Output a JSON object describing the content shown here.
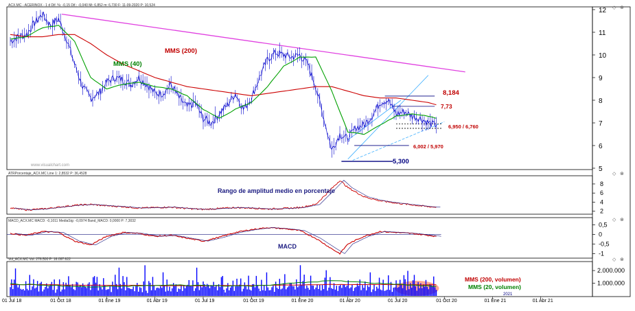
{
  "header": {
    "price_info": "ACX.MC - ACERINOX - 1 d  Dif. %: -0,15  Dif.: -0,040  Mi: 6,852  m: 6,730  F: 11-09-2020  P: 10,524",
    "watermark": "www.visualchart.com"
  },
  "panels": {
    "atr_header": "ATRPorcentaje_ACX.MC Line 1: 2,8532  P: 36,4528",
    "macd_header": "MACD_ACX.MC  MACD: -0,1011  MediaSig: -0,0974  Band_MACD: 0,0000  P: 7,3032",
    "vol_header": "Vol_ACX.MC  Vol: 276.500  P: 16.097.622"
  },
  "annotations": {
    "mms200": "MMS (200)",
    "mms40": "MMS (40)",
    "level_8184": "8,184",
    "level_773": "7,73",
    "level_6950": "6,950 / 6,760",
    "level_6002": "6,002 / 5,970",
    "level_5300": "5,300",
    "atr_title": "Rango de amplitud medio en porcentaje",
    "macd_title": "MACD",
    "vol_mms200": "MMS (200, volumen)",
    "vol_mms20": "MMS (20, volumen)",
    "year_2021": "2021"
  },
  "colors": {
    "price": "#0000cc",
    "mms200": "#cc0000",
    "mms40": "#00a000",
    "trendline": "#e040e0",
    "channel": "#40b0ff",
    "volume": "#0000ff",
    "volume_highlight": "#ff6040",
    "grid": "#000000"
  },
  "chart_data": [
    {
      "type": "line",
      "title": "",
      "x_ticks": [
        "01 Jul 18",
        "01 Oct 18",
        "01 Ene 19",
        "01 Abr 19",
        "01 Jul 19",
        "01 Oct 19",
        "01 Ene 20",
        "01 Abr 20",
        "01 Jul 20",
        "01 Oct 20",
        "01 Ene 21",
        "01 Abr 21"
      ],
      "y_ticks": [
        5,
        6,
        7,
        8,
        9,
        10,
        11,
        12
      ],
      "ylim": [
        5,
        12
      ],
      "x_months": [
        0,
        3,
        6,
        9,
        12,
        15,
        18,
        21,
        24,
        27,
        30,
        33
      ],
      "series": [
        {
          "name": "ACX.MC",
          "x": [
            0,
            0.5,
            1,
            1.5,
            2,
            2.5,
            3,
            3.5,
            4,
            4.5,
            5,
            5.5,
            6,
            6.5,
            7,
            7.5,
            8,
            8.5,
            9,
            9.5,
            10,
            10.5,
            11,
            11.5,
            12,
            12.5,
            13,
            13.5,
            14,
            14.5,
            15,
            15.5,
            16,
            16.5,
            17,
            17.5,
            18,
            18.5,
            19,
            19.5,
            20,
            20.5,
            21,
            21.5,
            22,
            22.5,
            23,
            23.5,
            24,
            24.5,
            25,
            25.5,
            26,
            26.5
          ],
          "values": [
            10.6,
            10.8,
            10.9,
            11.4,
            11.8,
            11.3,
            11.6,
            10.7,
            9.6,
            8.6,
            8.1,
            8.3,
            8.8,
            9.0,
            8.9,
            8.7,
            9.0,
            8.7,
            8.3,
            8.3,
            8.7,
            8.1,
            7.7,
            7.9,
            7.2,
            7.0,
            7.4,
            7.8,
            8.3,
            7.6,
            8.1,
            9.0,
            9.8,
            10.1,
            10.0,
            9.9,
            10.0,
            9.6,
            8.6,
            7.2,
            5.8,
            6.5,
            6.3,
            6.8,
            6.9,
            7.3,
            7.9,
            8.0,
            7.4,
            7.5,
            7.3,
            7.2,
            7.0,
            6.9
          ]
        },
        {
          "name": "MMS (40)",
          "x": [
            0,
            1,
            2,
            3,
            4,
            5,
            6,
            7,
            8,
            9,
            10,
            11,
            12,
            13,
            14,
            15,
            16,
            17,
            18,
            19,
            20,
            21,
            22,
            23,
            24,
            25,
            26,
            26.5
          ],
          "values": [
            10.7,
            10.8,
            11.2,
            11.3,
            10.6,
            9.0,
            8.5,
            8.7,
            8.8,
            8.6,
            8.5,
            8.2,
            7.6,
            7.2,
            7.6,
            7.9,
            8.6,
            9.5,
            9.9,
            9.9,
            8.4,
            6.6,
            6.5,
            6.9,
            7.3,
            7.4,
            7.3,
            7.2
          ]
        },
        {
          "name": "MMS (200)",
          "x": [
            0,
            1,
            2,
            3,
            4,
            5,
            6,
            7,
            8,
            9,
            10,
            11,
            12,
            13,
            14,
            15,
            16,
            17,
            18,
            19,
            20,
            21,
            22,
            23,
            24,
            25,
            26,
            26.5
          ],
          "values": [
            10.9,
            10.8,
            10.8,
            10.9,
            10.9,
            10.5,
            10.0,
            9.6,
            9.3,
            9.0,
            8.8,
            8.6,
            8.5,
            8.4,
            8.3,
            8.2,
            8.3,
            8.4,
            8.5,
            8.6,
            8.6,
            8.4,
            8.2,
            8.1,
            8.1,
            8.0,
            7.9,
            7.8
          ]
        }
      ],
      "levels": [
        8.184,
        7.73,
        6.95,
        6.76,
        6.002,
        5.97,
        5.3
      ]
    },
    {
      "type": "line",
      "title": "",
      "y_ticks": [
        2,
        4,
        6,
        8
      ],
      "ylim": [
        1.5,
        9.5
      ],
      "series": [
        {
          "name": "",
          "x": [
            0,
            1,
            2,
            3,
            4,
            5,
            6,
            7,
            8,
            9,
            10,
            11,
            12,
            13,
            14,
            15,
            16,
            17,
            18,
            19,
            20,
            20.5,
            21,
            22,
            23,
            24,
            25,
            26,
            26.5
          ],
          "values": [
            2.7,
            2.3,
            2.5,
            2.9,
            3.3,
            3.5,
            3.2,
            3.0,
            2.7,
            2.8,
            2.9,
            2.6,
            2.4,
            2.6,
            2.8,
            2.7,
            2.5,
            2.6,
            2.8,
            3.5,
            7.0,
            8.8,
            7.2,
            5.2,
            4.3,
            3.8,
            3.4,
            3.0,
            2.9
          ]
        }
      ]
    },
    {
      "type": "line",
      "title": "",
      "y_ticks": [
        0.5,
        0,
        -0.5,
        -1
      ],
      "ylim": [
        -1.2,
        0.8
      ],
      "series": [
        {
          "name": "MACD",
          "x": [
            0,
            1,
            2,
            3,
            4,
            5,
            6,
            7,
            8,
            9,
            10,
            11,
            12,
            13,
            14,
            15,
            16,
            17,
            18,
            19,
            20,
            20.5,
            21,
            22,
            23,
            24,
            25,
            26,
            26.5
          ],
          "values": [
            0.05,
            -0.05,
            0.15,
            0.1,
            -0.35,
            -0.55,
            -0.1,
            0.1,
            0.05,
            -0.1,
            -0.05,
            -0.2,
            -0.35,
            -0.15,
            0.1,
            0.25,
            0.35,
            0.3,
            0.2,
            -0.2,
            -0.75,
            -1.0,
            -0.5,
            -0.1,
            0.15,
            0.1,
            0.05,
            -0.05,
            -0.1
          ]
        }
      ]
    },
    {
      "type": "bar",
      "title": "",
      "y_ticks": [
        2000000,
        1000000
      ],
      "y_tick_labels": [
        "2.000.000",
        "1.000.000"
      ],
      "ylim": [
        0,
        2600000
      ],
      "series": [
        {
          "name": "Vol",
          "x_start": 0,
          "x_end": 26.5,
          "values": [
            900000,
            1400000,
            700000,
            1100000,
            1700000,
            800000,
            600000,
            1300000,
            900000,
            500000,
            1200000,
            700000,
            1000000,
            600000,
            800000,
            1500000,
            650000,
            900000,
            1100000,
            550000,
            750000,
            1300000,
            600000,
            900000,
            1800000,
            700000,
            500000,
            1000000,
            800000,
            650000,
            1200000,
            700000,
            900000,
            600000,
            1100000,
            500000,
            800000,
            750000,
            1400000,
            600000,
            700000,
            1000000,
            550000,
            900000,
            650000,
            1250000,
            800000,
            600000,
            1000000,
            700000,
            500000,
            850000,
            1600000,
            700000,
            900000,
            600000,
            1100000,
            750000,
            950000,
            650000,
            800000,
            1300000,
            700000,
            1000000,
            1900000,
            1200000,
            900000,
            1500000,
            800000,
            1100000,
            700000,
            950000,
            1250000,
            800000,
            600000,
            900000,
            700000,
            1000000,
            650000,
            850000
          ]
        },
        {
          "name": "MMS (200, volumen)",
          "x": [
            0,
            5,
            10,
            15,
            20,
            26.5
          ],
          "values": [
            900000,
            850000,
            800000,
            820000,
            900000,
            880000
          ]
        },
        {
          "name": "MMS (20, volumen)",
          "x": [
            0,
            5,
            10,
            15,
            20,
            26.5
          ],
          "values": [
            950000,
            700000,
            850000,
            780000,
            1200000,
            750000
          ]
        }
      ]
    }
  ]
}
